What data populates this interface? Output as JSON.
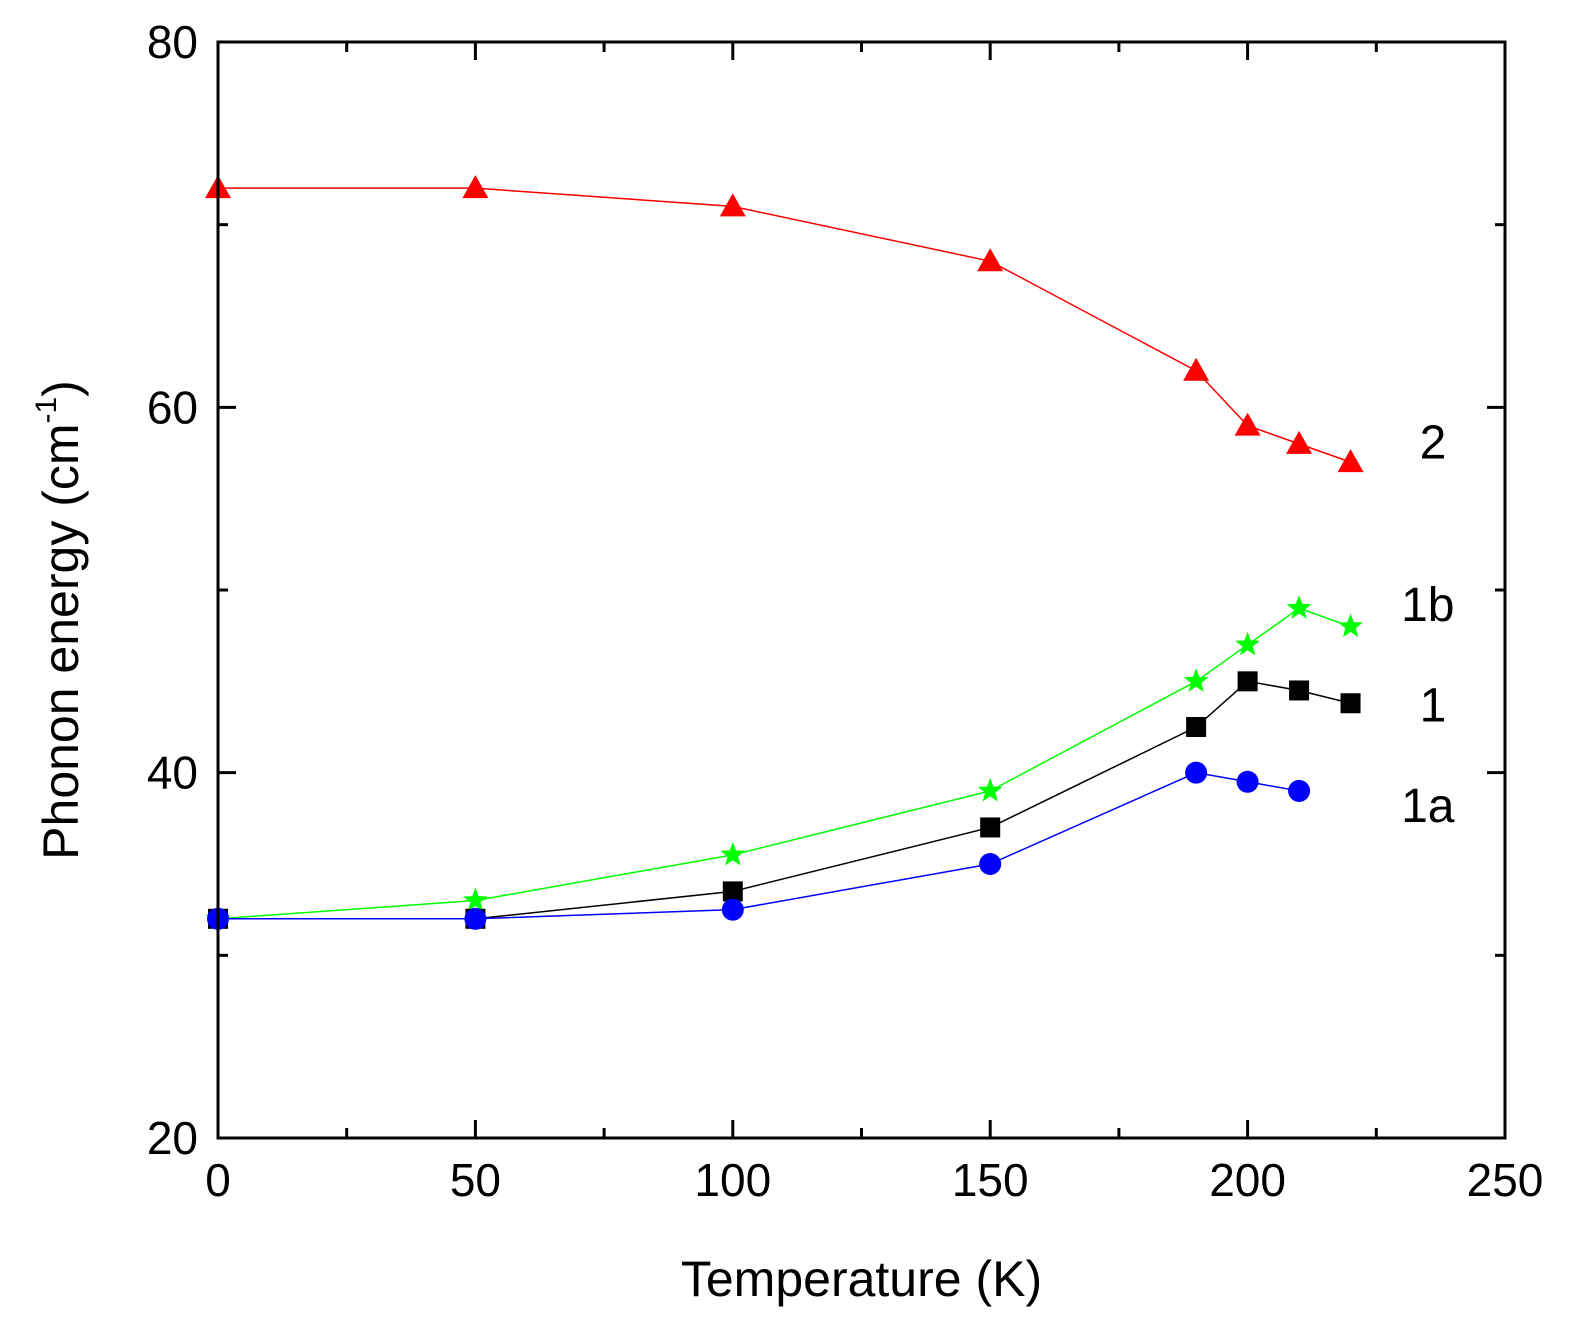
{
  "chart_data": {
    "type": "line",
    "xlabel": "Temperature (K)",
    "ylabel_main": "Phonon energy (cm",
    "ylabel_sup": "-1",
    "ylabel_close": ")",
    "xlim": [
      0,
      250
    ],
    "ylim": [
      20,
      80
    ],
    "x_ticks": [
      0,
      50,
      100,
      150,
      200,
      250
    ],
    "x_minor_ticks": [
      25,
      75,
      125,
      175,
      225
    ],
    "y_ticks": [
      20,
      40,
      60,
      80
    ],
    "y_minor_ticks": [
      30,
      50,
      70
    ],
    "series": [
      {
        "name": "2",
        "label": "2",
        "marker": "triangle",
        "color": "#ff0000",
        "x": [
          0,
          50,
          100,
          150,
          190,
          200,
          210,
          220
        ],
        "y": [
          72.0,
          72.0,
          71.0,
          68.0,
          62.0,
          59.0,
          58.0,
          57.0
        ],
        "label_at": [
          236,
          57.2
        ]
      },
      {
        "name": "1b",
        "label": "1b",
        "marker": "star",
        "color": "#00ff00",
        "x": [
          0,
          50,
          100,
          150,
          190,
          200,
          210,
          220
        ],
        "y": [
          32.0,
          33.0,
          35.5,
          39.0,
          45.0,
          47.0,
          49.0,
          48.0
        ],
        "label_at": [
          235,
          48.3
        ]
      },
      {
        "name": "1",
        "label": "1",
        "marker": "square",
        "color": "#000000",
        "x": [
          0,
          50,
          100,
          150,
          190,
          200,
          210,
          220
        ],
        "y": [
          32.0,
          32.0,
          33.5,
          37.0,
          42.5,
          45.0,
          44.5,
          43.8
        ],
        "label_at": [
          236,
          42.8
        ]
      },
      {
        "name": "1a",
        "label": "1a",
        "marker": "circle",
        "color": "#0000ff",
        "x": [
          0,
          50,
          100,
          150,
          190,
          200,
          210
        ],
        "y": [
          32.0,
          32.0,
          32.5,
          35.0,
          40.0,
          39.5,
          39.0
        ],
        "label_at": [
          235,
          37.3
        ]
      }
    ]
  }
}
